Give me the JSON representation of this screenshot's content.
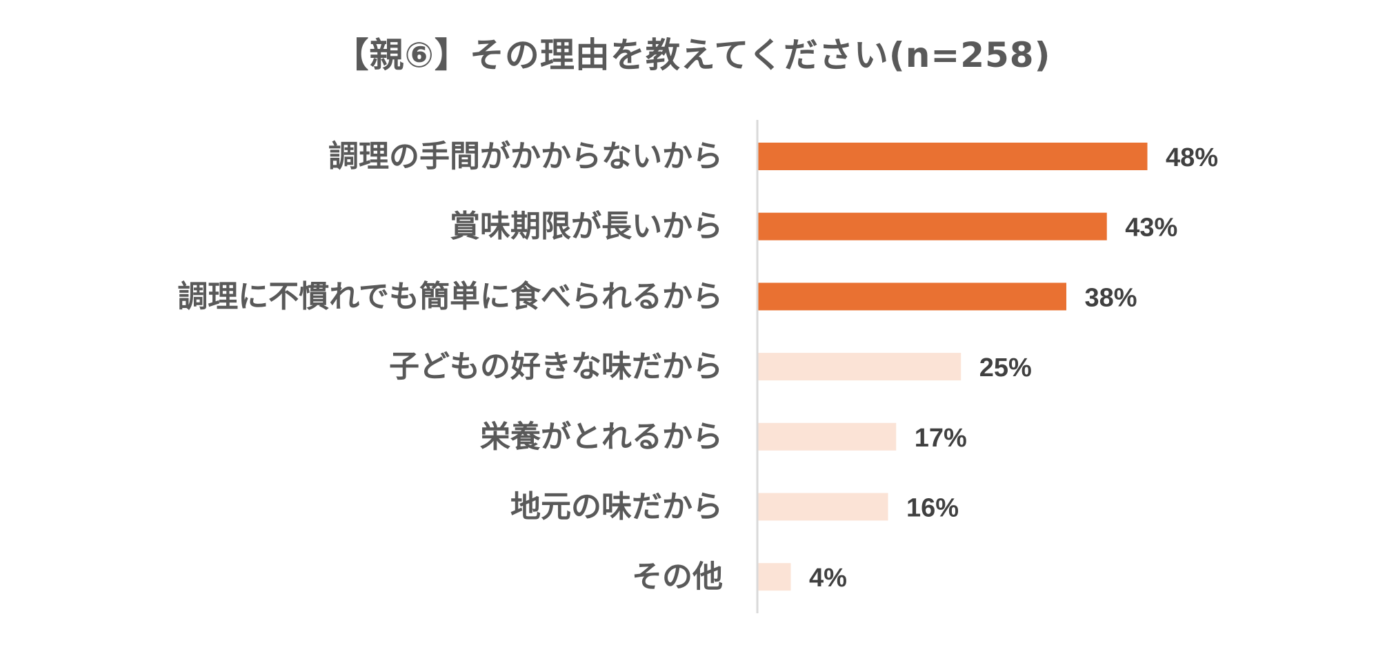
{
  "chart_data": {
    "type": "bar",
    "orientation": "horizontal",
    "title": "【親⑥】その理由を教えてください(n=258)",
    "categories": [
      "調理の手間がかからないから",
      "賞味期限が長いから",
      "調理に不慣れでも簡単に食べられるから",
      "子どもの好きな味だから",
      "栄養がとれるから",
      "地元の味だから",
      "その他"
    ],
    "values": [
      48,
      43,
      38,
      25,
      17,
      16,
      4
    ],
    "value_labels": [
      "48%",
      "43%",
      "38%",
      "25%",
      "17%",
      "16%",
      "4%"
    ],
    "unit": "%",
    "xlim": [
      0,
      100
    ],
    "grid": false,
    "legend": "none",
    "highlight_count": 3,
    "colors": {
      "highlight": "#E97132",
      "normal": "#FBE3D6",
      "axis": "#D9D9D9",
      "category_text": "#595959",
      "value_text": "#404040",
      "title_text": "#595959"
    }
  }
}
